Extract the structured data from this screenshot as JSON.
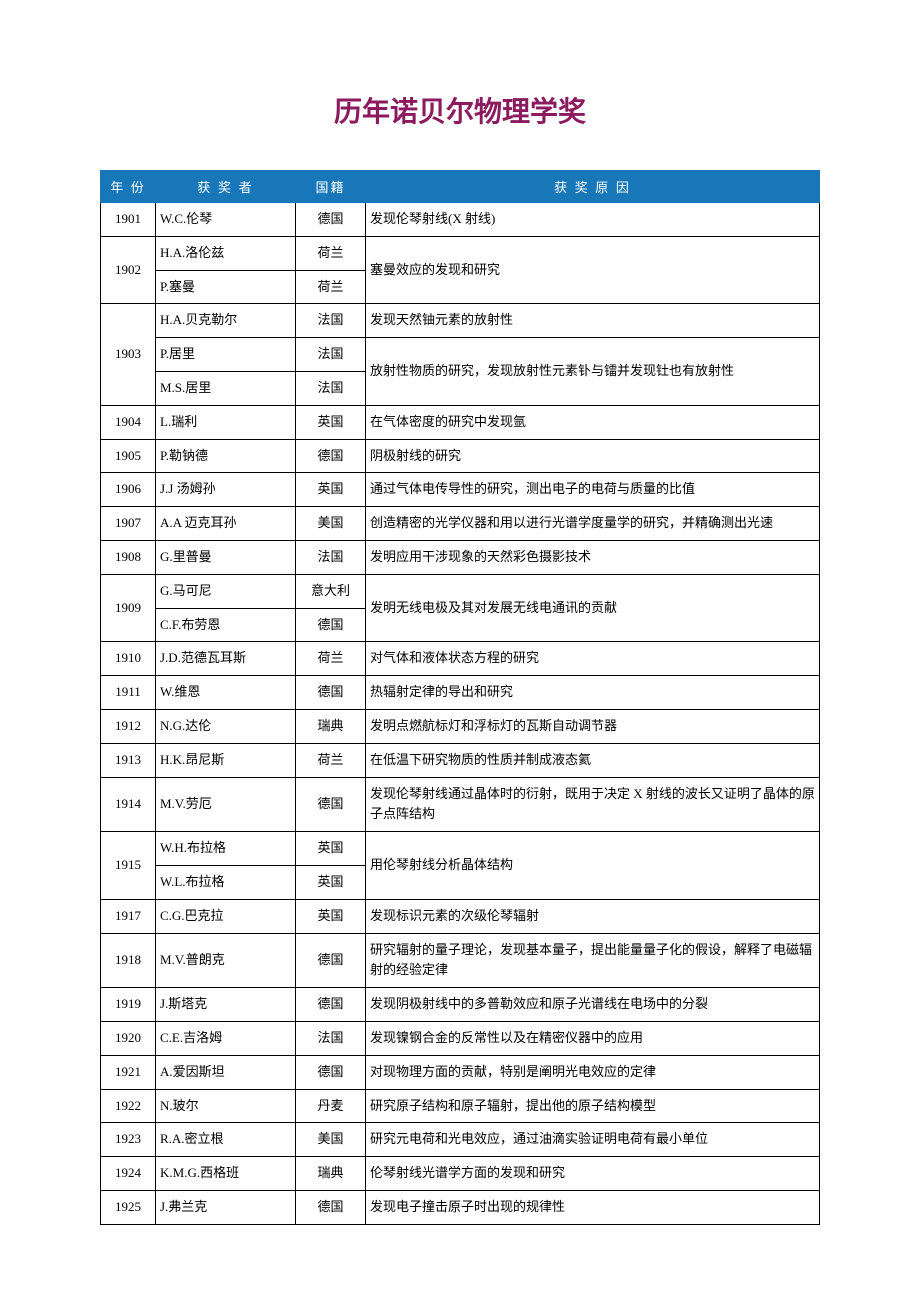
{
  "title": "历年诺贝尔物理学奖",
  "title_color": "#8b1a5e",
  "header_bg": "#1877b8",
  "header_fg": "#ffffff",
  "border_color": "#000000",
  "columns": {
    "year": "年 份",
    "name": "获 奖 者",
    "country": "国籍",
    "reason": "获 奖 原 因"
  },
  "rows": [
    {
      "year": "1901",
      "winners": [
        {
          "name": "W.C.伦琴",
          "country": "德国"
        }
      ],
      "reason": "发现伦琴射线(X 射线)"
    },
    {
      "year": "1902",
      "winners": [
        {
          "name": "H.A.洛伦兹",
          "country": "荷兰"
        },
        {
          "name": "P.塞曼",
          "country": "荷兰"
        }
      ],
      "reason": "塞曼效应的发现和研究"
    },
    {
      "year": "1903",
      "winners": [
        {
          "name": "H.A.贝克勒尔",
          "country": "法国"
        },
        {
          "name": "P.居里",
          "country": "法国"
        },
        {
          "name": "M.S.居里",
          "country": "法国"
        }
      ],
      "reasons": [
        "发现天然铀元素的放射性",
        "放射性物质的研究，发现放射性元素钋与镭并发现钍也有放射性"
      ],
      "reason_spans": [
        1,
        2
      ]
    },
    {
      "year": "1904",
      "winners": [
        {
          "name": "L.瑞利",
          "country": "英国"
        }
      ],
      "reason": "在气体密度的研究中发现氩"
    },
    {
      "year": "1905",
      "winners": [
        {
          "name": "P.勒钠德",
          "country": "德国"
        }
      ],
      "reason": "阴极射线的研究"
    },
    {
      "year": "1906",
      "winners": [
        {
          "name": "J.J 汤姆孙",
          "country": "英国"
        }
      ],
      "reason": "通过气体电传导性的研究，测出电子的电荷与质量的比值"
    },
    {
      "year": "1907",
      "winners": [
        {
          "name": "A.A 迈克耳孙",
          "country": "美国"
        }
      ],
      "reason": "创造精密的光学仪器和用以进行光谱学度量学的研究，并精确测出光速"
    },
    {
      "year": "1908",
      "winners": [
        {
          "name": "G.里普曼",
          "country": "法国"
        }
      ],
      "reason": "发明应用干涉现象的天然彩色摄影技术"
    },
    {
      "year": "1909",
      "winners": [
        {
          "name": "G.马可尼",
          "country": "意大利"
        },
        {
          "name": "C.F.布劳恩",
          "country": "德国"
        }
      ],
      "reason": "发明无线电极及其对发展无线电通讯的贡献"
    },
    {
      "year": "1910",
      "winners": [
        {
          "name": "J.D.范德瓦耳斯",
          "country": "荷兰"
        }
      ],
      "reason": "对气体和液体状态方程的研究"
    },
    {
      "year": "1911",
      "winners": [
        {
          "name": "W.维恩",
          "country": "德国"
        }
      ],
      "reason": "热辐射定律的导出和研究"
    },
    {
      "year": "1912",
      "winners": [
        {
          "name": "N.G.达伦",
          "country": "瑞典"
        }
      ],
      "reason": "发明点燃航标灯和浮标灯的瓦斯自动调节器"
    },
    {
      "year": "1913",
      "winners": [
        {
          "name": "H.K.昂尼斯",
          "country": "荷兰"
        }
      ],
      "reason": "在低温下研究物质的性质并制成液态氦"
    },
    {
      "year": "1914",
      "winners": [
        {
          "name": "M.V.劳厄",
          "country": "德国"
        }
      ],
      "reason": "发现伦琴射线通过晶体时的衍射，既用于决定 X 射线的波长又证明了晶体的原子点阵结构"
    },
    {
      "year": "1915",
      "winners": [
        {
          "name": "W.H.布拉格",
          "country": "英国"
        },
        {
          "name": "W.L.布拉格",
          "country": "英国"
        }
      ],
      "reason": "用伦琴射线分析晶体结构"
    },
    {
      "year": "1917",
      "winners": [
        {
          "name": "C.G.巴克拉",
          "country": "英国"
        }
      ],
      "reason": "发现标识元素的次级伦琴辐射"
    },
    {
      "year": "1918",
      "winners": [
        {
          "name": "M.V.普朗克",
          "country": "德国"
        }
      ],
      "reason": "研究辐射的量子理论，发现基本量子，提出能量量子化的假设，解释了电磁辐射的经验定律"
    },
    {
      "year": "1919",
      "winners": [
        {
          "name": "J.斯塔克",
          "country": "德国"
        }
      ],
      "reason": "发现阴极射线中的多普勒效应和原子光谱线在电场中的分裂"
    },
    {
      "year": "1920",
      "winners": [
        {
          "name": "C.E.吉洛姆",
          "country": "法国"
        }
      ],
      "reason": "发现镍钢合金的反常性以及在精密仪器中的应用"
    },
    {
      "year": "1921",
      "winners": [
        {
          "name": "A.爱因斯坦",
          "country": "德国"
        }
      ],
      "reason": "对现物理方面的贡献，特别是阐明光电效应的定律"
    },
    {
      "year": "1922",
      "winners": [
        {
          "name": "N.玻尔",
          "country": "丹麦"
        }
      ],
      "reason": "研究原子结构和原子辐射，提出他的原子结构模型"
    },
    {
      "year": "1923",
      "winners": [
        {
          "name": "R.A.密立根",
          "country": "美国"
        }
      ],
      "reason": "研究元电荷和光电效应，通过油滴实验证明电荷有最小单位"
    },
    {
      "year": "1924",
      "winners": [
        {
          "name": "K.M.G.西格班",
          "country": "瑞典"
        }
      ],
      "reason": "伦琴射线光谱学方面的发现和研究"
    },
    {
      "year": "1925",
      "winners": [
        {
          "name": "J.弗兰克",
          "country": "德国"
        }
      ],
      "reason": "发现电子撞击原子时出现的规律性"
    }
  ]
}
